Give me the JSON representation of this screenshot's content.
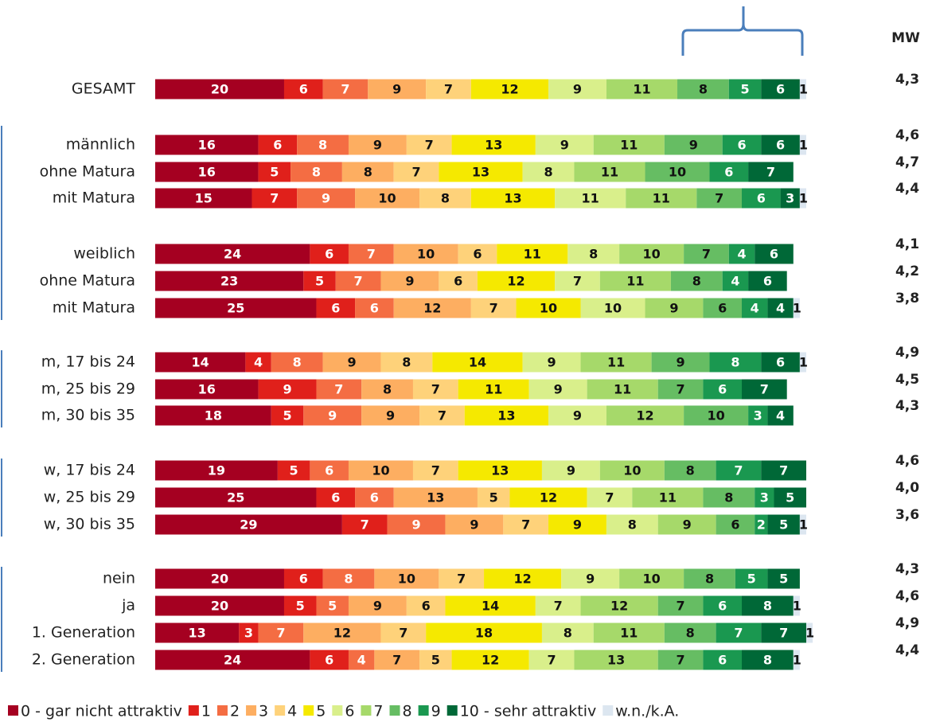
{
  "chart_data": {
    "type": "bar",
    "orientation": "horizontal",
    "stacked": true,
    "categories": [
      "GESAMT",
      "männlich",
      "ohne Matura",
      "mit Matura",
      "weiblich",
      "ohne Matura",
      "mit Matura",
      "m, 17 bis 24",
      "m, 25 bis 29",
      "m, 30 bis 35",
      "w, 17 bis 24",
      "w, 25 bis 29",
      "w, 30 bis 35",
      "nein",
      "ja",
      "1. Generation",
      "2. Generation"
    ],
    "series": [
      {
        "name": "0 - gar nicht attraktiv",
        "color": "#a50021",
        "values": [
          20,
          16,
          16,
          15,
          24,
          23,
          25,
          14,
          16,
          18,
          19,
          25,
          29,
          20,
          20,
          13,
          24
        ]
      },
      {
        "name": "1",
        "color": "#e0201b",
        "values": [
          6,
          6,
          5,
          7,
          6,
          5,
          6,
          4,
          9,
          5,
          5,
          6,
          7,
          6,
          5,
          3,
          6
        ]
      },
      {
        "name": "2",
        "color": "#f46d43",
        "values": [
          7,
          8,
          8,
          9,
          7,
          7,
          6,
          8,
          7,
          9,
          6,
          6,
          9,
          8,
          5,
          7,
          4
        ]
      },
      {
        "name": "3",
        "color": "#fdae61",
        "values": [
          9,
          9,
          8,
          10,
          10,
          9,
          12,
          9,
          8,
          9,
          10,
          13,
          9,
          10,
          9,
          12,
          7
        ]
      },
      {
        "name": "4",
        "color": "#fed27a",
        "values": [
          7,
          7,
          7,
          8,
          6,
          6,
          7,
          8,
          7,
          7,
          7,
          5,
          7,
          7,
          6,
          7,
          5
        ]
      },
      {
        "name": "5",
        "color": "#f5e900",
        "values": [
          12,
          13,
          13,
          13,
          11,
          12,
          10,
          14,
          11,
          13,
          13,
          12,
          9,
          12,
          14,
          18,
          12
        ]
      },
      {
        "name": "6",
        "color": "#d9ef8b",
        "values": [
          9,
          9,
          8,
          11,
          8,
          7,
          10,
          9,
          9,
          9,
          9,
          7,
          8,
          9,
          7,
          8,
          7
        ]
      },
      {
        "name": "7",
        "color": "#a6d96a",
        "values": [
          11,
          11,
          11,
          11,
          10,
          11,
          9,
          11,
          11,
          12,
          10,
          11,
          9,
          10,
          12,
          11,
          13
        ]
      },
      {
        "name": "8",
        "color": "#66bd63",
        "values": [
          8,
          9,
          10,
          7,
          7,
          8,
          6,
          9,
          7,
          10,
          8,
          8,
          6,
          8,
          7,
          8,
          7
        ]
      },
      {
        "name": "9",
        "color": "#1a9850",
        "values": [
          5,
          6,
          6,
          6,
          4,
          4,
          4,
          8,
          6,
          3,
          7,
          3,
          2,
          5,
          6,
          7,
          6
        ]
      },
      {
        "name": "10 - sehr attraktiv",
        "color": "#006837",
        "values": [
          6,
          6,
          7,
          3,
          6,
          6,
          4,
          6,
          7,
          4,
          7,
          5,
          5,
          5,
          8,
          7,
          8
        ]
      },
      {
        "name": "w.n./k.A.",
        "color": "#dce6f0",
        "values": [
          1,
          1,
          null,
          1,
          null,
          null,
          1,
          1,
          null,
          null,
          null,
          null,
          1,
          null,
          1,
          1,
          1
        ]
      }
    ],
    "mean_title": "MW",
    "means": [
      4.3,
      4.6,
      4.7,
      4.4,
      4.1,
      4.2,
      3.8,
      4.9,
      4.5,
      4.3,
      4.6,
      4.0,
      3.6,
      4.3,
      4.6,
      4.9,
      4.4
    ],
    "mean_labels": [
      "4,3",
      "4,6",
      "4,7",
      "4,4",
      "4,1",
      "4,2",
      "3,8",
      "4,9",
      "4,5",
      "4,3",
      "4,6",
      "4,0",
      "3,6",
      "4,3",
      "4,6",
      "4,9",
      "4,4"
    ],
    "xlim": [
      0,
      101
    ]
  }
}
